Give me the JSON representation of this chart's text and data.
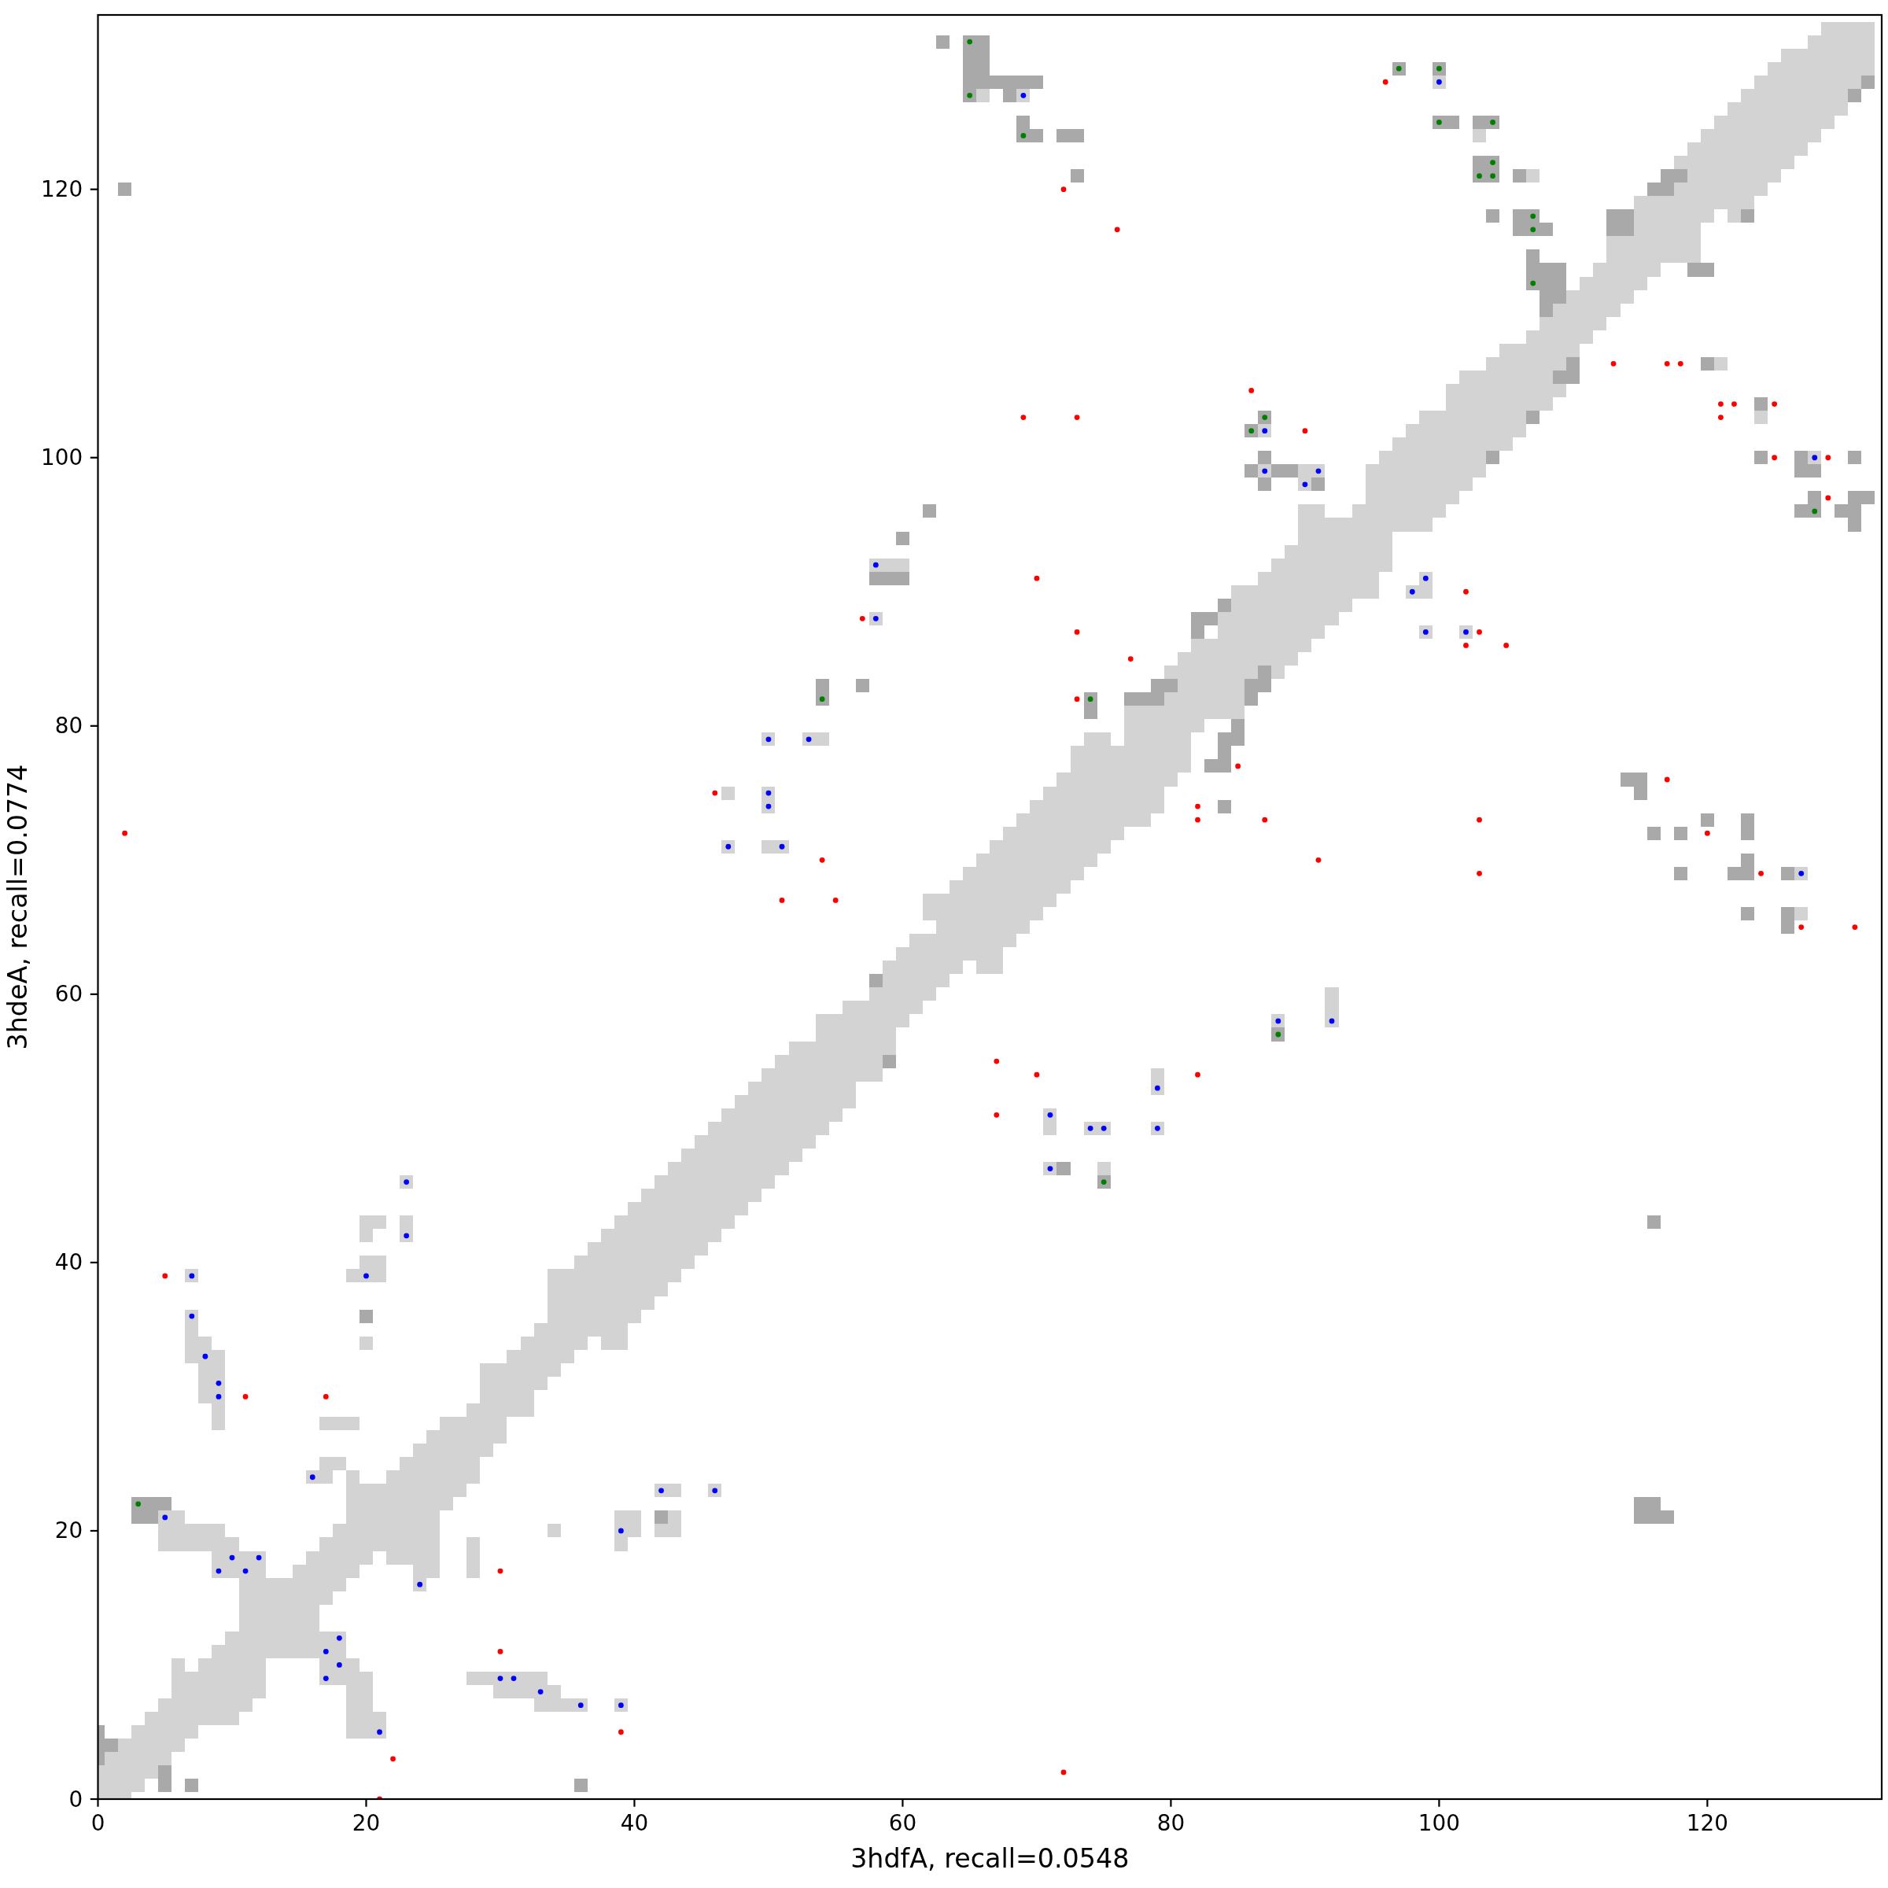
{
  "chart_data": {
    "type": "scatter",
    "xlabel": "3hdfA, recall=0.0548",
    "ylabel": "3hdeA, recall=0.0774",
    "xlim": [
      0,
      133
    ],
    "ylim": [
      0,
      133
    ],
    "xticks": [
      0,
      20,
      40,
      60,
      80,
      100,
      120
    ],
    "yticks": [
      0,
      20,
      40,
      60,
      80,
      100,
      120
    ],
    "series": [
      {
        "type": "bar",
        "color": "#d3d3d3",
        "x": [
          0,
          1,
          2,
          3,
          4,
          5,
          6,
          7,
          8,
          9,
          10,
          11,
          12,
          13,
          14,
          15,
          16,
          17,
          18,
          19,
          20,
          21,
          22,
          23,
          24,
          25,
          26,
          27,
          28,
          29,
          30,
          31,
          32,
          33,
          34,
          35,
          36,
          37,
          38,
          39,
          40,
          41,
          42,
          43,
          44,
          45,
          46,
          47,
          48,
          49,
          50,
          51,
          52,
          53,
          54,
          55,
          56,
          57,
          58,
          59,
          60,
          61,
          62,
          63,
          64,
          65,
          66,
          67,
          68,
          69,
          70,
          71,
          72,
          73,
          74,
          75,
          76,
          77,
          78,
          79,
          80,
          81,
          82,
          83,
          84,
          85,
          86,
          87,
          88,
          89,
          90,
          91,
          92,
          93,
          94,
          95,
          96,
          97,
          98,
          99,
          100,
          101,
          102,
          103,
          104,
          105,
          106,
          107,
          108,
          109,
          110,
          111,
          112,
          113,
          114,
          115,
          116,
          117,
          118,
          119,
          120,
          121,
          122,
          123,
          124,
          125,
          126,
          127,
          128,
          129,
          130,
          131,
          132
        ],
        "base": [
          0,
          0,
          0,
          0.5,
          1.5,
          2.5,
          3.5,
          4.5,
          5.5,
          5.5,
          5.5,
          6.5,
          7.5,
          10.5,
          10.5,
          10.5,
          10.5,
          14.5,
          15.5,
          16.5,
          17.5,
          18.5,
          17.5,
          17.5,
          15.5,
          16.5,
          21.5,
          22.5,
          23.5,
          25.5,
          26.5,
          28.5,
          28.5,
          30.5,
          31.5,
          32.5,
          33.5,
          34.5,
          33.5,
          33.5,
          35.5,
          36.5,
          37.5,
          38.5,
          39.5,
          40.5,
          41.5,
          42.5,
          43.5,
          44.5,
          45.5,
          46.5,
          47.5,
          48.5,
          49.5,
          50.5,
          51.5,
          53.5,
          53.5,
          55.5,
          57.5,
          58.5,
          59.5,
          60.5,
          61.5,
          62.5,
          61.5,
          61.5,
          63.5,
          64.5,
          65.5,
          66.5,
          67.5,
          68.5,
          69.5,
          70.5,
          71.5,
          72.5,
          72.5,
          73.5,
          75.5,
          76.5,
          79.5,
          80.5,
          80.5,
          80.5,
          83.5,
          84.5,
          83.5,
          84.5,
          85.5,
          86.5,
          87.5,
          88.5,
          89.5,
          89.5,
          91.5,
          94.5,
          94.5,
          94.5,
          95.5,
          96.5,
          97.5,
          98.5,
          99.5,
          100.5,
          101.5,
          103.5,
          103.5,
          104.5,
          107.5,
          108.5,
          109.5,
          110.5,
          111.5,
          112.5,
          113.5,
          114.5,
          114.5,
          114.5,
          117.5,
          118.5,
          117.5,
          118.5,
          119.5,
          120.5,
          121.5,
          122.5,
          123.5,
          124.5,
          125.5,
          127.5,
          128.5
        ],
        "values": [
          2.5,
          3.5,
          4.5,
          5,
          5,
          5,
          7,
          5,
          5,
          6,
          7,
          12,
          11,
          6,
          6,
          7,
          8,
          5,
          5,
          8,
          6,
          5,
          7,
          8,
          11,
          11,
          7,
          6,
          6,
          7,
          6,
          5,
          6,
          5,
          8,
          7,
          7,
          7,
          9,
          10,
          9,
          9,
          9,
          9,
          9,
          9,
          9,
          9,
          9,
          9,
          9,
          9,
          9,
          8,
          9,
          8,
          8,
          6,
          7,
          7,
          6,
          6,
          5,
          7,
          7,
          7,
          9,
          10,
          9,
          9,
          9,
          9,
          9,
          10,
          10,
          9,
          7,
          9,
          9,
          8,
          9,
          9,
          7,
          6,
          8,
          10,
          7,
          7,
          9,
          9,
          11,
          10,
          8,
          7,
          7,
          10,
          9,
          7,
          8,
          9,
          8,
          9,
          9,
          8,
          8,
          8,
          7,
          6,
          7,
          7,
          5,
          5,
          5,
          6,
          5,
          7,
          6,
          5,
          8,
          9,
          7,
          7,
          9,
          9,
          9,
          9,
          9,
          8,
          8,
          8,
          7,
          5,
          4
        ]
      },
      {
        "marker": "square",
        "color": "#d3d3d3",
        "x": [
          5,
          5,
          5,
          6,
          6,
          6,
          7,
          7,
          7,
          7,
          7,
          7,
          7,
          8,
          8,
          8,
          8,
          8,
          8,
          8,
          9,
          9,
          9,
          9,
          9,
          9,
          9,
          9,
          9,
          9,
          10,
          10,
          10,
          16,
          17,
          17,
          17,
          17,
          17,
          17,
          17,
          18,
          18,
          18,
          18,
          18,
          18,
          19,
          19,
          19,
          19,
          19,
          19,
          19,
          19,
          20,
          20,
          20,
          20,
          20,
          20,
          20,
          20,
          20,
          20,
          21,
          21,
          21,
          21,
          21,
          23,
          23,
          23,
          28,
          28,
          28,
          28,
          29,
          30,
          30,
          31,
          31,
          32,
          32,
          33,
          33,
          33,
          34,
          34,
          34,
          35,
          36,
          39,
          39,
          39,
          39,
          40,
          40,
          42,
          42,
          43,
          43,
          43,
          46,
          47,
          47,
          50,
          50,
          50,
          50,
          51,
          53,
          54,
          58,
          58,
          59,
          60,
          62,
          62,
          66,
          69,
          71,
          71,
          71,
          74,
          75,
          75,
          79,
          79,
          79,
          87,
          87,
          88,
          90,
          90,
          91,
          92,
          92,
          92,
          98,
          99,
          99,
          99,
          100,
          102,
          103,
          107,
          121,
          124,
          127,
          127,
          128
        ],
        "values": [
          19,
          20,
          21,
          19,
          20,
          21,
          19,
          20,
          33,
          34,
          35,
          36,
          39,
          19,
          20,
          30,
          31,
          32,
          33,
          34,
          17,
          18,
          19,
          20,
          28,
          29,
          30,
          31,
          32,
          33,
          17,
          18,
          19,
          24,
          9,
          10,
          11,
          12,
          24,
          25,
          28,
          9,
          10,
          11,
          12,
          25,
          28,
          5,
          6,
          7,
          8,
          9,
          10,
          28,
          39,
          5,
          6,
          7,
          8,
          9,
          34,
          39,
          40,
          42,
          43,
          5,
          6,
          39,
          40,
          43,
          42,
          43,
          46,
          9,
          17,
          18,
          19,
          9,
          8,
          9,
          8,
          9,
          8,
          9,
          7,
          8,
          9,
          7,
          8,
          20,
          7,
          7,
          7,
          19,
          20,
          21,
          20,
          21,
          20,
          23,
          20,
          21,
          23,
          23,
          71,
          75,
          71,
          74,
          75,
          79,
          71,
          79,
          79,
          88,
          92,
          92,
          92,
          66,
          67,
          127,
          127,
          47,
          50,
          51,
          50,
          47,
          50,
          50,
          53,
          54,
          99,
          102,
          58,
          98,
          99,
          99,
          58,
          59,
          60,
          90,
          87,
          90,
          91,
          128,
          87,
          124,
          121,
          107,
          103,
          66,
          69,
          100
        ]
      },
      {
        "marker": "square",
        "color": "#a9a9a9",
        "x": [
          0,
          0,
          0,
          1,
          5,
          5,
          7,
          36,
          3,
          4,
          3,
          4,
          5,
          20,
          42,
          2,
          59,
          58,
          72,
          75,
          88,
          54,
          54,
          57,
          74,
          74,
          77,
          78,
          79,
          79,
          80,
          82,
          82,
          83,
          84,
          83,
          84,
          84,
          84,
          85,
          85,
          86,
          86,
          87,
          87,
          84,
          58,
          59,
          60,
          60,
          62,
          63,
          65,
          65,
          65,
          65,
          65,
          66,
          66,
          66,
          66,
          67,
          68,
          69,
          70,
          68,
          69,
          69,
          70,
          72,
          73,
          73,
          86,
          87,
          87,
          86,
          88,
          89,
          87,
          91,
          97,
          100,
          100,
          101,
          103,
          104,
          103,
          104,
          103,
          104,
          106,
          104,
          106,
          107,
          106,
          107,
          108,
          107,
          107,
          107,
          108,
          108,
          108,
          108,
          109,
          109,
          109,
          113,
          113,
          114,
          114,
          116,
          117,
          117,
          118,
          119,
          120,
          123,
          131,
          132,
          109,
          110,
          110,
          107,
          104,
          120,
          124,
          124,
          127,
          127,
          128,
          131,
          127,
          128,
          128,
          130,
          131,
          131,
          131,
          132,
          114,
          115,
          115,
          116,
          118,
          120,
          123,
          123,
          118,
          122,
          123,
          123,
          126,
          123,
          126,
          126,
          115,
          115,
          116,
          116,
          117,
          116
        ],
        "values": [
          3,
          4,
          5,
          4,
          1,
          2,
          1,
          1,
          21,
          21,
          22,
          22,
          22,
          36,
          21,
          120,
          55,
          61,
          47,
          46,
          57,
          82,
          83,
          83,
          81,
          82,
          82,
          82,
          82,
          83,
          83,
          87,
          88,
          88,
          89,
          77,
          77,
          78,
          79,
          79,
          80,
          82,
          83,
          83,
          84,
          74,
          91,
          91,
          91,
          94,
          96,
          131,
          127,
          128,
          129,
          130,
          131,
          128,
          129,
          130,
          131,
          128,
          128,
          128,
          128,
          127,
          124,
          125,
          124,
          124,
          124,
          121,
          102,
          103,
          100,
          99,
          99,
          99,
          98,
          98,
          129,
          129,
          125,
          125,
          125,
          125,
          121,
          121,
          122,
          122,
          121,
          118,
          118,
          118,
          117,
          117,
          117,
          113,
          114,
          115,
          111,
          112,
          113,
          114,
          112,
          113,
          114,
          117,
          118,
          117,
          118,
          120,
          120,
          121,
          121,
          114,
          114,
          118,
          127,
          128,
          106,
          106,
          107,
          103,
          100,
          107,
          104,
          100,
          99,
          100,
          99,
          100,
          96,
          96,
          97,
          96,
          95,
          96,
          97,
          97,
          76,
          76,
          75,
          72,
          72,
          73,
          72,
          73,
          69,
          69,
          69,
          70,
          69,
          66,
          65,
          66,
          21,
          22,
          21,
          22,
          21,
          43
        ]
      },
      {
        "marker": "circle",
        "color": "#ff0000",
        "x": [
          5,
          11,
          17,
          30,
          30,
          39,
          22,
          21,
          2,
          72,
          57,
          73,
          77,
          73,
          46,
          54,
          51,
          55,
          85,
          82,
          82,
          87,
          91,
          67,
          70,
          67,
          82,
          72,
          76,
          86,
          90,
          69,
          73,
          70,
          96,
          113,
          117,
          118,
          121,
          122,
          125,
          121,
          125,
          129,
          129,
          102,
          102,
          103,
          105,
          103,
          103,
          117,
          120,
          124,
          127,
          131
        ],
        "values": [
          39,
          30,
          30,
          17,
          11,
          5,
          3,
          0,
          72,
          2,
          88,
          87,
          85,
          82,
          75,
          70,
          67,
          67,
          77,
          74,
          73,
          73,
          70,
          55,
          54,
          51,
          54,
          120,
          117,
          105,
          102,
          103,
          103,
          91,
          128,
          107,
          107,
          107,
          104,
          104,
          104,
          103,
          100,
          100,
          97,
          90,
          86,
          87,
          86,
          73,
          69,
          76,
          72,
          69,
          65,
          65
        ]
      },
      {
        "marker": "circle",
        "color": "#0000ff",
        "x": [
          7,
          7,
          8,
          9,
          9,
          5,
          10,
          12,
          9,
          11,
          16,
          20,
          23,
          23,
          18,
          17,
          18,
          17,
          21,
          24,
          30,
          31,
          33,
          36,
          39,
          39,
          42,
          46,
          58,
          50,
          53,
          50,
          50,
          47,
          51,
          79,
          79,
          71,
          74,
          75,
          71,
          88,
          92,
          58,
          69,
          87,
          87,
          90,
          91,
          98,
          99,
          99,
          102,
          100,
          128,
          127
        ],
        "values": [
          39,
          36,
          33,
          31,
          30,
          21,
          18,
          18,
          17,
          17,
          24,
          39,
          42,
          46,
          12,
          11,
          10,
          9,
          5,
          16,
          9,
          9,
          8,
          7,
          7,
          20,
          23,
          23,
          88,
          79,
          79,
          75,
          74,
          71,
          71,
          53,
          50,
          51,
          50,
          50,
          47,
          58,
          58,
          92,
          127,
          102,
          99,
          98,
          99,
          90,
          91,
          87,
          87,
          128,
          100,
          69
        ]
      },
      {
        "marker": "circle",
        "color": "#008000",
        "x": [
          3,
          54,
          74,
          75,
          88,
          65,
          65,
          69,
          87,
          86,
          97,
          100,
          100,
          104,
          104,
          103,
          104,
          107,
          107,
          107,
          128
        ],
        "values": [
          22,
          82,
          82,
          46,
          57,
          131,
          127,
          124,
          103,
          102,
          129,
          129,
          125,
          125,
          122,
          121,
          121,
          118,
          117,
          113,
          96
        ]
      }
    ]
  }
}
